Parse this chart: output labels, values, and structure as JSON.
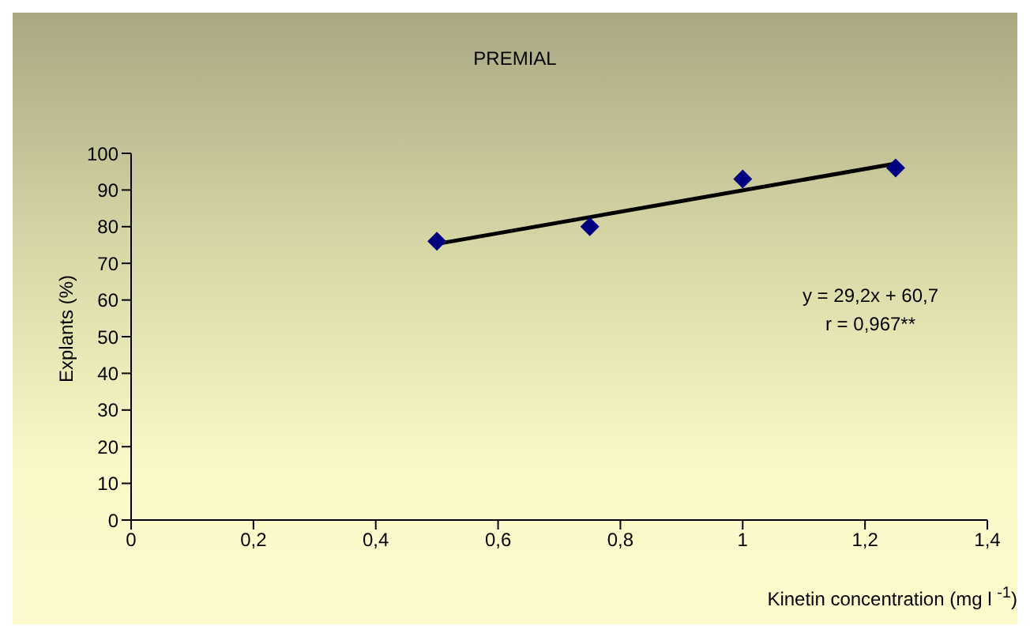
{
  "chart_data": {
    "type": "scatter",
    "title": "PREMIAL",
    "xlabel": "Kinetin concentration (mg l $^{-1}$)",
    "ylabel": "Explants (%)",
    "annotations": [
      "y = 29,2x + 60,7",
      "r = 0,967**"
    ],
    "x": [
      0.5,
      0.75,
      1,
      1.25
    ],
    "series": [
      {
        "color": "#000080",
        "marker": "diamond",
        "values": [
          76,
          80,
          93,
          96
        ]
      },
      {
        "type": "line",
        "color": "#000000",
        "marker": "none",
        "x": [
          0.5,
          1.25
        ],
        "values": [
          75.3,
          97.2
        ]
      }
    ],
    "xlim": [
      0,
      1.4
    ],
    "xticks": [
      0,
      {
        "value": 0.2,
        "label": "0,2"
      },
      {
        "value": 0.4,
        "label": "0,4"
      },
      {
        "value": 0.6,
        "label": "0,6"
      },
      {
        "value": 0.8,
        "label": "0,8"
      },
      1,
      {
        "value": 1.2,
        "label": "1,2"
      },
      {
        "value": 1.4,
        "label": "1,4"
      }
    ],
    "ylim": [
      0,
      100
    ],
    "yticks": [
      0,
      10,
      20,
      30,
      40,
      50,
      60,
      70,
      80,
      90,
      100
    ],
    "grid": false,
    "line_style": "solid"
  }
}
